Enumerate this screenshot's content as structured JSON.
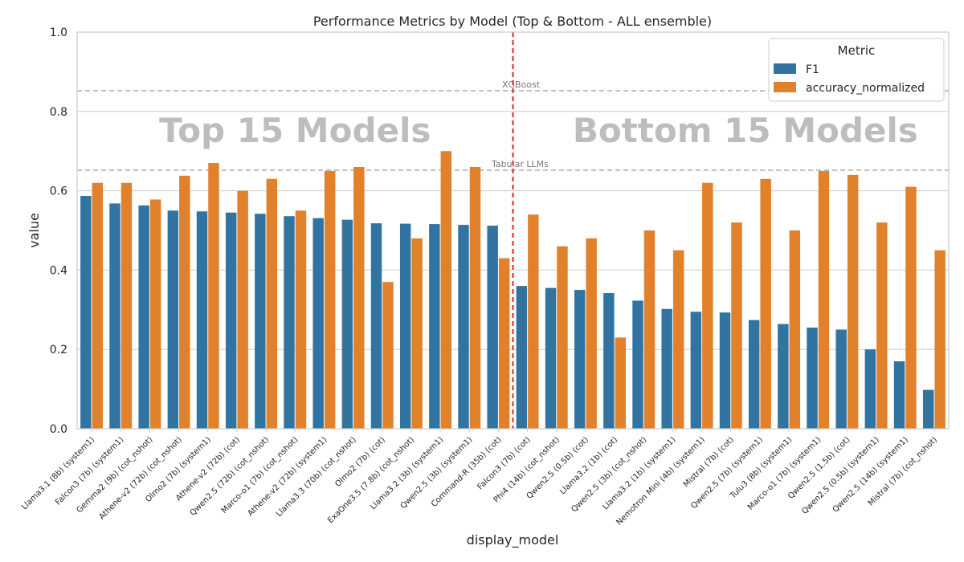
{
  "chart_data": {
    "type": "bar",
    "title": "Performance Metrics by Model (Top & Bottom - ALL ensemble)",
    "xlabel": "display_model",
    "ylabel": "value",
    "ylim": [
      0,
      1
    ],
    "yticks": [
      "0.0",
      "0.2",
      "0.4",
      "0.6",
      "0.8",
      "1.0"
    ],
    "grid": true,
    "legend": {
      "title": "Metric",
      "position": "top-right"
    },
    "categories": [
      "Llama3.1 (8b) (system1)",
      "Falcon3 (7b) (system1)",
      "Gemma2 (9b) (cot_nshot)",
      "Athene-v2 (72b) (cot_nshot)",
      "Olmo2 (7b) (system1)",
      "Athene-v2 (72b) (cot)",
      "Qwen2.5 (72b) (cot_nshot)",
      "Marco-o1 (7b) (cot_nshot)",
      "Athene-v2 (72b) (system1)",
      "Llama3.3 (70b) (cot_nshot)",
      "Olmo2 (7b) (cot)",
      "ExaOne3.5 (7.8b) (cot_nshot)",
      "Llama3.2 (3b) (system1)",
      "Qwen2.5 (3b) (system1)",
      "Command-R (35b) (cot)",
      "Falcon3 (7b) (cot)",
      "Phi4 (14b) (cot_nshot)",
      "Qwen2.5 (0.5b) (cot)",
      "Llama3.2 (1b) (cot)",
      "Qwen2.5 (3b) (cot_nshot)",
      "Llama3.2 (1b) (system1)",
      "Nemotron Mini (4b) (system1)",
      "Mistral (7b) (cot)",
      "Qwen2.5 (7b) (system1)",
      "Tulu3 (8b) (system1)",
      "Marco-o1 (7b) (system1)",
      "Qwen2.5 (1.5b) (cot)",
      "Qwen2.5 (0.5b) (system1)",
      "Qwen2.5 (14b) (system1)",
      "Mistral (7b) (cot_nshot)"
    ],
    "series": [
      {
        "name": "F1",
        "color": "#3274a1",
        "values": [
          0.587,
          0.568,
          0.563,
          0.55,
          0.548,
          0.545,
          0.542,
          0.536,
          0.531,
          0.527,
          0.518,
          0.517,
          0.516,
          0.514,
          0.512,
          0.36,
          0.355,
          0.35,
          0.342,
          0.323,
          0.302,
          0.295,
          0.293,
          0.274,
          0.264,
          0.255,
          0.25,
          0.2,
          0.17,
          0.098
        ]
      },
      {
        "name": "accuracy_normalized",
        "color": "#e1812c",
        "values": [
          0.62,
          0.62,
          0.578,
          0.638,
          0.67,
          0.6,
          0.63,
          0.55,
          0.65,
          0.66,
          0.37,
          0.48,
          0.7,
          0.66,
          0.43,
          0.54,
          0.46,
          0.48,
          0.23,
          0.5,
          0.45,
          0.62,
          0.52,
          0.63,
          0.5,
          0.65,
          0.64,
          0.52,
          0.61,
          0.45
        ]
      }
    ],
    "reference_lines": [
      {
        "label": "XGBoost",
        "value": 0.852
      },
      {
        "label": "Tabular LLMs",
        "value": 0.652
      }
    ],
    "sections": [
      "Top 15 Models",
      "Bottom 15 Models"
    ],
    "divider_after_index": 14,
    "divider_color": "#d62728"
  }
}
